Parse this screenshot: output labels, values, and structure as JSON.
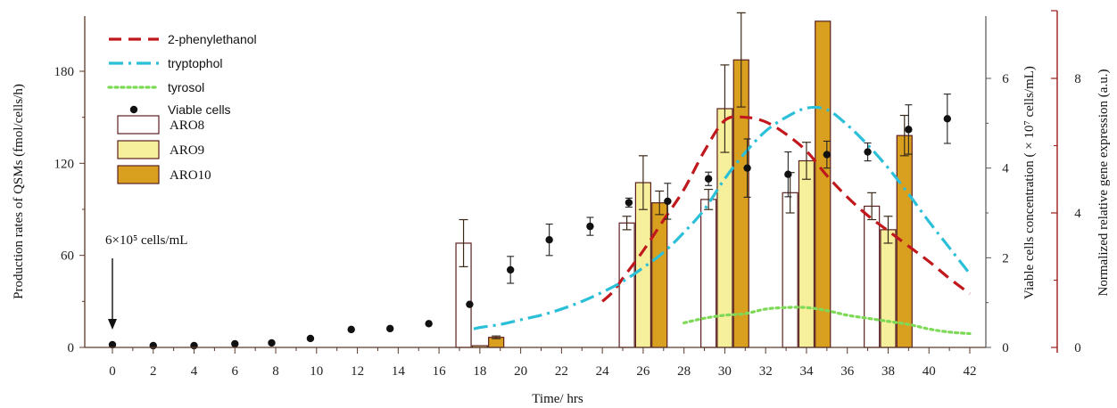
{
  "chart_data": {
    "type": "bar",
    "xlabel": "Time/ hrs",
    "ylabel_left": "Production rates of QSMs (fmol/cells/h)",
    "ylabel_right_viable": "Viable cells concentration ( × 10⁷ cells/mL)",
    "ylabel_right_expression": "Normalized relative gene expression (a.u.)",
    "x_ticks": [
      "0",
      "2",
      "4",
      "6",
      "8",
      "10",
      "12",
      "14",
      "16",
      "18",
      "20",
      "22",
      "24",
      "26",
      "28",
      "30",
      "32",
      "34",
      "36",
      "38",
      "40",
      "42"
    ],
    "y_left_ticks": [
      "0",
      "60",
      "120",
      "180"
    ],
    "y_viable_ticks": [
      "0",
      "2",
      "4",
      "6"
    ],
    "y_expression_ticks": [
      "0",
      "4",
      "8"
    ],
    "xlim": [
      0,
      42
    ],
    "ylim_left": [
      0,
      210
    ],
    "ylim_viable": [
      0,
      7.1
    ],
    "ylim_expression": [
      0,
      10
    ],
    "annotation": "6×10⁵ cells/mL",
    "annotation_x": 0,
    "legend": {
      "placement": "top-left",
      "entries": [
        {
          "label": "2-phenylethanol",
          "kind": "line-dash",
          "color": "#c0181c"
        },
        {
          "label": "tryptophol",
          "kind": "line-dashdot",
          "color": "#2bbfd8"
        },
        {
          "label": "tyrosol",
          "kind": "line-dot",
          "color": "#7ed957"
        },
        {
          "label": "Viable cells",
          "kind": "marker",
          "color": "#111111"
        },
        {
          "label": "ARO8",
          "kind": "bar",
          "color": "#ffffff"
        },
        {
          "label": "ARO9",
          "kind": "bar",
          "color": "#f6ef9b"
        },
        {
          "label": "ARO10",
          "kind": "bar",
          "color": "#d9a020"
        }
      ]
    },
    "lines": [
      {
        "name": "2-phenylethanol",
        "color": "#c0181c",
        "style": "dash",
        "x": [
          24.0,
          24.5,
          25.0,
          26.0,
          27.0,
          28.0,
          29.0,
          30.0,
          31.0,
          32.0,
          33.0,
          34.0,
          35.0,
          36.0,
          37.0,
          38.0,
          39.0,
          40.0,
          41.0,
          42.0
        ],
        "y": [
          30,
          36,
          45,
          63,
          83,
          103,
          128,
          148,
          150,
          147,
          139,
          128,
          112,
          98,
          86,
          76,
          66,
          56,
          45,
          35
        ]
      },
      {
        "name": "tryptophol",
        "color": "#2bbfd8",
        "style": "dashdot",
        "x": [
          17.7,
          18.0,
          19.0,
          20.0,
          21.0,
          22.0,
          23.0,
          24.0,
          25.0,
          26.0,
          27.0,
          28.0,
          29.0,
          30.0,
          31.0,
          32.0,
          33.0,
          34.0,
          35.0,
          36.0,
          37.0,
          38.0,
          39.0,
          40.0,
          41.0,
          42.0
        ],
        "y": [
          12,
          13,
          15,
          18,
          21,
          25,
          30,
          36,
          43,
          52,
          62,
          75,
          90,
          110,
          127,
          141,
          150,
          156,
          155,
          145,
          132,
          117,
          100,
          82,
          65,
          48
        ]
      },
      {
        "name": "tyrosol",
        "color": "#7ed957",
        "style": "dot",
        "x": [
          28.0,
          29.0,
          30.0,
          31.0,
          32.0,
          33.0,
          34.0,
          35.0,
          36.0,
          37.0,
          38.0,
          39.0,
          40.0,
          41.0,
          42.0
        ],
        "y": [
          16,
          19,
          21,
          22,
          25,
          26,
          26,
          24,
          21,
          19,
          17,
          15,
          12,
          10,
          9
        ]
      }
    ],
    "viable_cells": {
      "name": "Viable cells",
      "color": "#111111",
      "points": [
        {
          "x": 0.0,
          "y": 0.06,
          "err": 0
        },
        {
          "x": 2.0,
          "y": 0.04,
          "err": 0
        },
        {
          "x": 4.0,
          "y": 0.04,
          "err": 0
        },
        {
          "x": 6.0,
          "y": 0.08,
          "err": 0
        },
        {
          "x": 7.8,
          "y": 0.1,
          "err": 0
        },
        {
          "x": 9.7,
          "y": 0.2,
          "err": 0
        },
        {
          "x": 11.7,
          "y": 0.4,
          "err": 0
        },
        {
          "x": 13.6,
          "y": 0.42,
          "err": 0
        },
        {
          "x": 15.5,
          "y": 0.53,
          "err": 0
        },
        {
          "x": 17.5,
          "y": 0.96,
          "err": 0
        },
        {
          "x": 19.5,
          "y": 1.73,
          "err": 0.3
        },
        {
          "x": 21.4,
          "y": 2.4,
          "err": 0.35
        },
        {
          "x": 23.4,
          "y": 2.7,
          "err": 0.2
        },
        {
          "x": 25.3,
          "y": 3.23,
          "err": 0.1
        },
        {
          "x": 27.2,
          "y": 3.26,
          "err": 0.4
        },
        {
          "x": 29.2,
          "y": 3.76,
          "err": 0.15
        },
        {
          "x": 31.1,
          "y": 4.0,
          "err": 0.65
        },
        {
          "x": 33.1,
          "y": 3.86,
          "err": 0.5
        },
        {
          "x": 35.0,
          "y": 4.3,
          "err": 0.3
        },
        {
          "x": 37.0,
          "y": 4.36,
          "err": 0.2
        },
        {
          "x": 39.0,
          "y": 4.86,
          "err": 0.55
        },
        {
          "x": 40.9,
          "y": 5.1,
          "err": 0.55
        }
      ]
    },
    "bar_series": [
      {
        "name": "ARO8",
        "color": "#ffffff",
        "stroke": "#5a1f1f",
        "x": [
          17.2,
          25.2,
          29.2,
          33.2,
          37.2
        ],
        "values": [
          3.1,
          3.7,
          4.4,
          4.6,
          4.2
        ],
        "err": [
          0.7,
          0.2,
          0.3,
          0.6,
          0.4
        ]
      },
      {
        "name": "ARO9",
        "color": "#f6ef9b",
        "stroke": "#5a1f1f",
        "x": [
          18.0,
          26.0,
          30.0,
          34.0,
          38.0
        ],
        "values": [
          0.05,
          4.9,
          7.1,
          5.55,
          3.5
        ],
        "err": [
          0,
          0.8,
          1.3,
          0.55,
          0.4
        ]
      },
      {
        "name": "ARO10",
        "color": "#d9a020",
        "stroke": "#5a1f1f",
        "x": [
          18.8,
          26.8,
          30.8,
          34.8,
          38.8
        ],
        "values": [
          0.3,
          4.3,
          8.55,
          9.7,
          6.3
        ],
        "err": [
          0.04,
          0.35,
          1.4,
          0,
          0.6
        ]
      }
    ]
  }
}
